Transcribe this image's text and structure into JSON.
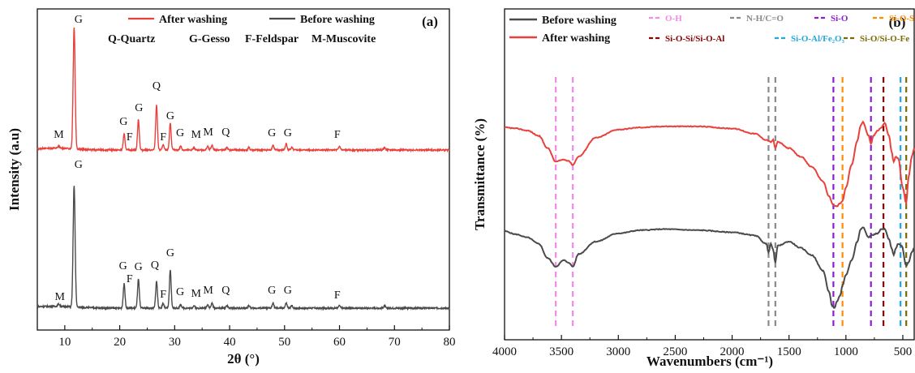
{
  "chart_data": [
    {
      "type": "line",
      "panel_label": "(a)",
      "xlabel": "2θ (°)",
      "ylabel": "Intensity (a.u)",
      "xlim": [
        5,
        80
      ],
      "xticks": [
        "10",
        "20",
        "30",
        "40",
        "50",
        "60",
        "70",
        "80"
      ],
      "legend_placement": "top",
      "phase_key": [
        "Q-Quartz",
        "G-Gesso",
        "F-Feldspar",
        "M-Muscovite"
      ],
      "series": [
        {
          "name": "After washing",
          "color": "#e8413c",
          "offset": 1.0,
          "baseline": 0.06,
          "peaks": [
            [
              8.9,
              0.02
            ],
            [
              11.7,
              1.0
            ],
            [
              20.8,
              0.13
            ],
            [
              23.4,
              0.25
            ],
            [
              26.7,
              0.37
            ],
            [
              27.9,
              0.04
            ],
            [
              29.2,
              0.22
            ],
            [
              31.1,
              0.03
            ],
            [
              33.5,
              0.02
            ],
            [
              36.0,
              0.03
            ],
            [
              36.8,
              0.04
            ],
            [
              39.5,
              0.02
            ],
            [
              43.5,
              0.02
            ],
            [
              47.9,
              0.04
            ],
            [
              50.3,
              0.05
            ],
            [
              51.3,
              0.02
            ],
            [
              60.0,
              0.03
            ],
            [
              68.2,
              0.02
            ]
          ]
        },
        {
          "name": "Before washing",
          "color": "#4a4a4a",
          "offset": 0.0,
          "baseline": 0.06,
          "peaks": [
            [
              8.9,
              0.02
            ],
            [
              11.7,
              1.0
            ],
            [
              20.8,
              0.2
            ],
            [
              23.4,
              0.24
            ],
            [
              26.7,
              0.22
            ],
            [
              27.9,
              0.04
            ],
            [
              29.2,
              0.31
            ],
            [
              31.1,
              0.03
            ],
            [
              33.5,
              0.02
            ],
            [
              36.0,
              0.03
            ],
            [
              36.8,
              0.04
            ],
            [
              39.5,
              0.02
            ],
            [
              43.5,
              0.02
            ],
            [
              47.9,
              0.04
            ],
            [
              50.3,
              0.04
            ],
            [
              51.3,
              0.02
            ],
            [
              60.0,
              0.02
            ],
            [
              68.2,
              0.02
            ]
          ]
        }
      ],
      "peak_labels": {
        "after": [
          {
            "x": 8.9,
            "t": "M"
          },
          {
            "x": 12.5,
            "t": "G"
          },
          {
            "x": 20.7,
            "t": "G"
          },
          {
            "x": 21.8,
            "t": "F"
          },
          {
            "x": 23.5,
            "t": "G"
          },
          {
            "x": 26.7,
            "t": "Q"
          },
          {
            "x": 27.9,
            "t": "F"
          },
          {
            "x": 29.2,
            "t": "G"
          },
          {
            "x": 31.0,
            "t": "G"
          },
          {
            "x": 33.9,
            "t": "M"
          },
          {
            "x": 36.1,
            "t": "M"
          },
          {
            "x": 39.3,
            "t": "Q"
          },
          {
            "x": 47.7,
            "t": "G"
          },
          {
            "x": 50.6,
            "t": "G"
          },
          {
            "x": 59.6,
            "t": "F"
          }
        ],
        "before": [
          {
            "x": 9.1,
            "t": "M"
          },
          {
            "x": 12.5,
            "t": "G"
          },
          {
            "x": 20.6,
            "t": "G"
          },
          {
            "x": 21.8,
            "t": "F"
          },
          {
            "x": 23.4,
            "t": "G"
          },
          {
            "x": 26.4,
            "t": "Q"
          },
          {
            "x": 27.9,
            "t": "F"
          },
          {
            "x": 29.2,
            "t": "G"
          },
          {
            "x": 31.0,
            "t": "G"
          },
          {
            "x": 33.9,
            "t": "M"
          },
          {
            "x": 36.1,
            "t": "M"
          },
          {
            "x": 39.3,
            "t": "Q"
          },
          {
            "x": 47.7,
            "t": "G"
          },
          {
            "x": 50.6,
            "t": "G"
          },
          {
            "x": 59.6,
            "t": "F"
          }
        ]
      }
    },
    {
      "type": "line",
      "panel_label": "(b)",
      "xlabel": "Wavenumbers (cm⁻¹)",
      "ylabel": "Transmittance (%)",
      "xlim": [
        4000,
        400
      ],
      "xticks": [
        "4000",
        "3500",
        "3000",
        "2500",
        "2000",
        "1500",
        "1000",
        "500"
      ],
      "legend_placement": "top",
      "series": [
        {
          "name": "Before washing",
          "color": "#4a4a4a",
          "points": [
            [
              4000,
              0.78
            ],
            [
              3900,
              0.75
            ],
            [
              3800,
              0.72
            ],
            [
              3700,
              0.66
            ],
            [
              3620,
              0.52
            ],
            [
              3550,
              0.44
            ],
            [
              3480,
              0.5
            ],
            [
              3440,
              0.48
            ],
            [
              3400,
              0.44
            ],
            [
              3350,
              0.56
            ],
            [
              3200,
              0.68
            ],
            [
              3000,
              0.76
            ],
            [
              2800,
              0.79
            ],
            [
              2600,
              0.8
            ],
            [
              2300,
              0.79
            ],
            [
              2000,
              0.77
            ],
            [
              1800,
              0.74
            ],
            [
              1700,
              0.66
            ],
            [
              1680,
              0.58
            ],
            [
              1660,
              0.66
            ],
            [
              1640,
              0.6
            ],
            [
              1620,
              0.48
            ],
            [
              1600,
              0.64
            ],
            [
              1500,
              0.68
            ],
            [
              1400,
              0.62
            ],
            [
              1300,
              0.55
            ],
            [
              1200,
              0.4
            ],
            [
              1150,
              0.2
            ],
            [
              1120,
              0.06
            ],
            [
              1100,
              0.04
            ],
            [
              1080,
              0.1
            ],
            [
              1050,
              0.16
            ],
            [
              1030,
              0.26
            ],
            [
              1000,
              0.36
            ],
            [
              950,
              0.5
            ],
            [
              900,
              0.68
            ],
            [
              870,
              0.8
            ],
            [
              850,
              0.82
            ],
            [
              800,
              0.72
            ],
            [
              780,
              0.74
            ],
            [
              720,
              0.76
            ],
            [
              690,
              0.8
            ],
            [
              660,
              0.8
            ],
            [
              620,
              0.7
            ],
            [
              600,
              0.62
            ],
            [
              580,
              0.55
            ],
            [
              560,
              0.62
            ],
            [
              540,
              0.66
            ],
            [
              510,
              0.64
            ],
            [
              470,
              0.45
            ],
            [
              450,
              0.48
            ],
            [
              420,
              0.58
            ],
            [
              400,
              0.62
            ]
          ]
        },
        {
          "name": "After washing",
          "color": "#e8413c",
          "points": [
            [
              4000,
              1.78
            ],
            [
              3900,
              1.77
            ],
            [
              3800,
              1.75
            ],
            [
              3700,
              1.7
            ],
            [
              3620,
              1.58
            ],
            [
              3550,
              1.45
            ],
            [
              3480,
              1.47
            ],
            [
              3440,
              1.46
            ],
            [
              3400,
              1.42
            ],
            [
              3350,
              1.5
            ],
            [
              3200,
              1.68
            ],
            [
              3000,
              1.76
            ],
            [
              2800,
              1.78
            ],
            [
              2600,
              1.79
            ],
            [
              2300,
              1.79
            ],
            [
              2000,
              1.77
            ],
            [
              1800,
              1.72
            ],
            [
              1700,
              1.66
            ],
            [
              1660,
              1.64
            ],
            [
              1640,
              1.66
            ],
            [
              1620,
              1.58
            ],
            [
              1600,
              1.64
            ],
            [
              1500,
              1.58
            ],
            [
              1400,
              1.5
            ],
            [
              1300,
              1.4
            ],
            [
              1200,
              1.26
            ],
            [
              1150,
              1.12
            ],
            [
              1110,
              1.03
            ],
            [
              1080,
              1.02
            ],
            [
              1050,
              1.05
            ],
            [
              1030,
              1.07
            ],
            [
              1000,
              1.2
            ],
            [
              950,
              1.42
            ],
            [
              900,
              1.65
            ],
            [
              870,
              1.8
            ],
            [
              850,
              1.83
            ],
            [
              800,
              1.7
            ],
            [
              780,
              1.62
            ],
            [
              760,
              1.7
            ],
            [
              720,
              1.75
            ],
            [
              690,
              1.78
            ],
            [
              660,
              1.82
            ],
            [
              620,
              1.7
            ],
            [
              600,
              1.55
            ],
            [
              580,
              1.45
            ],
            [
              560,
              1.5
            ],
            [
              540,
              1.48
            ],
            [
              500,
              1.2
            ],
            [
              470,
              1.05
            ],
            [
              450,
              1.3
            ],
            [
              420,
              1.5
            ],
            [
              400,
              1.58
            ]
          ]
        }
      ],
      "vlines": [
        {
          "x": 3550,
          "color": "#f28be8",
          "label": "O-H"
        },
        {
          "x": 3400,
          "color": "#f28be8",
          "label": ""
        },
        {
          "x": 1680,
          "color": "#8a8a8a",
          "label": "N-H/C=O"
        },
        {
          "x": 1620,
          "color": "#8a8a8a",
          "label": ""
        },
        {
          "x": 1110,
          "color": "#8a1fd1",
          "label": "Si-O"
        },
        {
          "x": 1030,
          "color": "#ff8c00",
          "label": "Si-O-Si"
        },
        {
          "x": 780,
          "color": "#8a1fd1",
          "label": ""
        },
        {
          "x": 670,
          "color": "#8b0000",
          "label": "Si-O-Si/Si-O-Al"
        },
        {
          "x": 520,
          "color": "#1fa8e0",
          "label": "Si-O-Al/Fe₂O₃"
        },
        {
          "x": 470,
          "color": "#7a6a00",
          "label": "Si-O/Si-O-Fe"
        }
      ]
    }
  ]
}
